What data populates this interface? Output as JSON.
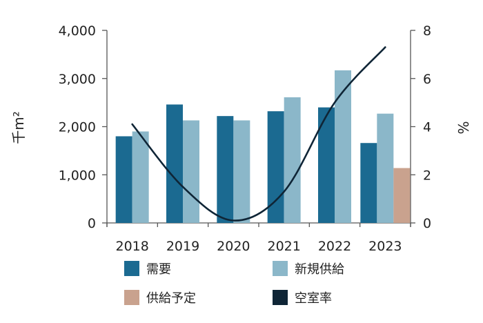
{
  "chart_data": {
    "type": "bar+line",
    "categories": [
      "2018",
      "2019",
      "2020",
      "2021",
      "2022",
      "2023"
    ],
    "series": [
      {
        "name": "需要",
        "axis": "left",
        "type": "bar",
        "color": "#1b6a91",
        "values": [
          1800,
          2460,
          2220,
          2320,
          2400,
          1660
        ]
      },
      {
        "name": "新規供給",
        "axis": "left",
        "type": "bar",
        "color": "#8bb7c9",
        "values": [
          1900,
          2130,
          2130,
          2610,
          3170,
          2270
        ]
      },
      {
        "name": "供給予定",
        "axis": "left",
        "type": "bar",
        "color": "#c9a28e",
        "values": [
          null,
          null,
          null,
          null,
          null,
          1140
        ]
      },
      {
        "name": "空室率",
        "axis": "right",
        "type": "line",
        "color": "#0f2536",
        "values": [
          4.1,
          1.5,
          0.1,
          1.3,
          5.0,
          7.3
        ]
      }
    ],
    "y_left": {
      "label": "千m²",
      "ylim": [
        0,
        4000
      ],
      "ticks": [
        "0",
        "1,000",
        "2,000",
        "3,000",
        "4,000"
      ]
    },
    "y_right": {
      "label": "%",
      "ylim": [
        0,
        8
      ],
      "ticks": [
        "0",
        "2",
        "4",
        "6",
        "8"
      ]
    },
    "legend": {
      "position": "bottom",
      "entries": [
        "需要",
        "新規供給",
        "供給予定",
        "空室率"
      ]
    },
    "grid": false
  }
}
